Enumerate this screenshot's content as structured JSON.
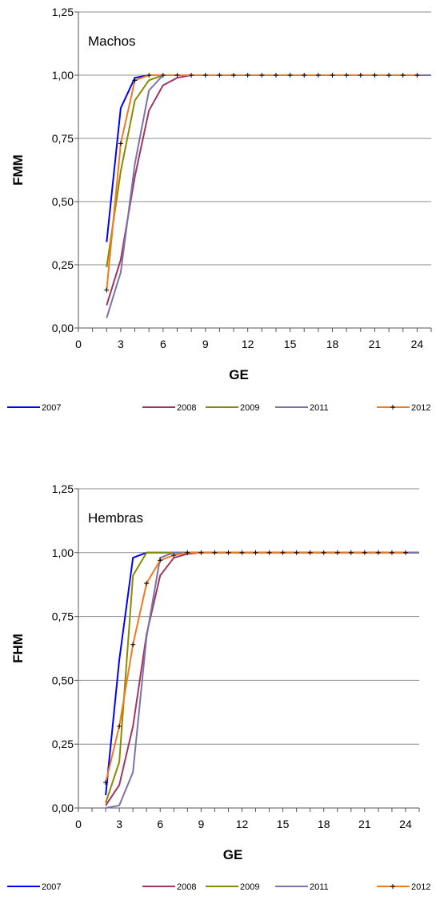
{
  "chart_data": [
    {
      "type": "line",
      "annotation": "Machos",
      "xlabel": "GE",
      "ylabel": "FMM",
      "xlim": [
        0,
        25
      ],
      "ylim": [
        0,
        1.25
      ],
      "xticks": [
        0,
        3,
        6,
        9,
        12,
        15,
        18,
        21,
        24
      ],
      "yticks": [
        0,
        0.25,
        0.5,
        0.75,
        1.0,
        1.25
      ],
      "ytick_labels": [
        "0,00",
        "0,25",
        "0,50",
        "0,75",
        "1,00",
        "1,25"
      ],
      "grid": "horizontal",
      "legend_position": "bottom",
      "series": [
        {
          "name": "2007",
          "color": "#0000ff",
          "marker": "none",
          "x": [
            2,
            3,
            4,
            5,
            6,
            7,
            8,
            9,
            10,
            11,
            12,
            13,
            14,
            15,
            16,
            17,
            18,
            19,
            20,
            21,
            22,
            23,
            24,
            25
          ],
          "y": [
            0.34,
            0.87,
            0.99,
            1.0,
            1.0,
            1.0,
            1.0,
            1.0,
            1.0,
            1.0,
            1.0,
            1.0,
            1.0,
            1.0,
            1.0,
            1.0,
            1.0,
            1.0,
            1.0,
            1.0,
            1.0,
            1.0,
            1.0,
            1.0
          ]
        },
        {
          "name": "2008",
          "color": "#a0355f",
          "marker": "none",
          "x": [
            2,
            3,
            4,
            5,
            6,
            7,
            8,
            9,
            10,
            11,
            12,
            13,
            14,
            15,
            16,
            17,
            18,
            19,
            20,
            21,
            22,
            23,
            24,
            25
          ],
          "y": [
            0.09,
            0.27,
            0.6,
            0.86,
            0.96,
            0.99,
            1.0,
            1.0,
            1.0,
            1.0,
            1.0,
            1.0,
            1.0,
            1.0,
            1.0,
            1.0,
            1.0,
            1.0,
            1.0,
            1.0,
            1.0,
            1.0,
            1.0,
            1.0
          ]
        },
        {
          "name": "2009",
          "color": "#8a8a00",
          "marker": "none",
          "x": [
            2,
            3,
            4,
            5,
            6,
            7,
            8,
            9,
            10,
            11,
            12,
            13,
            14,
            15,
            16,
            17,
            18,
            19,
            20,
            21,
            22,
            23,
            24,
            25
          ],
          "y": [
            0.24,
            0.62,
            0.9,
            0.98,
            1.0,
            1.0,
            1.0,
            1.0,
            1.0,
            1.0,
            1.0,
            1.0,
            1.0,
            1.0,
            1.0,
            1.0,
            1.0,
            1.0,
            1.0,
            1.0,
            1.0,
            1.0,
            1.0,
            1.0
          ]
        },
        {
          "name": "2011",
          "color": "#7b72a8",
          "marker": "none",
          "x": [
            2,
            3,
            4,
            5,
            6,
            7,
            8,
            9,
            10,
            11,
            12,
            13,
            14,
            15,
            16,
            17,
            18,
            19,
            20,
            21,
            22,
            23,
            24,
            25
          ],
          "y": [
            0.04,
            0.22,
            0.65,
            0.94,
            1.0,
            1.0,
            1.0,
            1.0,
            1.0,
            1.0,
            1.0,
            1.0,
            1.0,
            1.0,
            1.0,
            1.0,
            1.0,
            1.0,
            1.0,
            1.0,
            1.0,
            1.0,
            1.0,
            1.0
          ]
        },
        {
          "name": "2012",
          "color": "#f07a1e",
          "marker": "plus",
          "x": [
            2,
            3,
            4,
            5,
            6,
            7,
            8,
            9,
            10,
            11,
            12,
            13,
            14,
            15,
            16,
            17,
            18,
            19,
            20,
            21,
            22,
            23,
            24
          ],
          "y": [
            0.15,
            0.73,
            0.98,
            1.0,
            1.0,
            1.0,
            1.0,
            1.0,
            1.0,
            1.0,
            1.0,
            1.0,
            1.0,
            1.0,
            1.0,
            1.0,
            1.0,
            1.0,
            1.0,
            1.0,
            1.0,
            1.0,
            1.0
          ]
        }
      ]
    },
    {
      "type": "line",
      "annotation": "Hembras",
      "xlabel": "GE",
      "ylabel": "FHM",
      "xlim": [
        0,
        25
      ],
      "ylim": [
        0,
        1.25
      ],
      "xticks": [
        0,
        3,
        6,
        9,
        12,
        15,
        18,
        21,
        24
      ],
      "yticks": [
        0,
        0.25,
        0.5,
        0.75,
        1.0,
        1.25
      ],
      "ytick_labels": [
        "0,00",
        "0,25",
        "0,50",
        "0,75",
        "1,00",
        "1,25"
      ],
      "grid": "horizontal",
      "legend_position": "bottom",
      "series": [
        {
          "name": "2007",
          "color": "#0000ff",
          "marker": "none",
          "x": [
            2,
            3,
            4,
            5,
            6,
            7,
            8,
            9,
            10,
            11,
            12,
            13,
            14,
            15,
            16,
            17,
            18,
            19,
            20,
            21,
            22,
            23,
            24,
            25
          ],
          "y": [
            0.05,
            0.58,
            0.98,
            1.0,
            1.0,
            1.0,
            1.0,
            1.0,
            1.0,
            1.0,
            1.0,
            1.0,
            1.0,
            1.0,
            1.0,
            1.0,
            1.0,
            1.0,
            1.0,
            1.0,
            1.0,
            1.0,
            1.0,
            1.0
          ]
        },
        {
          "name": "2008",
          "color": "#a0355f",
          "marker": "none",
          "x": [
            2,
            3,
            4,
            5,
            6,
            7,
            8,
            9,
            10,
            11,
            12,
            13,
            14,
            15,
            16,
            17,
            18,
            19,
            20,
            21,
            22,
            23,
            24,
            25
          ],
          "y": [
            0.01,
            0.09,
            0.32,
            0.68,
            0.91,
            0.98,
            0.995,
            1.0,
            1.0,
            1.0,
            1.0,
            1.0,
            1.0,
            1.0,
            1.0,
            1.0,
            1.0,
            1.0,
            1.0,
            1.0,
            1.0,
            1.0,
            1.0,
            1.0
          ]
        },
        {
          "name": "2009",
          "color": "#8a8a00",
          "marker": "none",
          "x": [
            2,
            3,
            4,
            5,
            6,
            7,
            8,
            9,
            10,
            11,
            12,
            13,
            14,
            15,
            16,
            17,
            18,
            19,
            20,
            21,
            22,
            23,
            24,
            25
          ],
          "y": [
            0.02,
            0.18,
            0.91,
            1.0,
            1.0,
            1.0,
            1.0,
            1.0,
            1.0,
            1.0,
            1.0,
            1.0,
            1.0,
            1.0,
            1.0,
            1.0,
            1.0,
            1.0,
            1.0,
            1.0,
            1.0,
            1.0,
            1.0,
            1.0
          ]
        },
        {
          "name": "2011",
          "color": "#7b72a8",
          "marker": "none",
          "x": [
            2,
            3,
            4,
            5,
            6,
            7,
            8,
            9,
            10,
            11,
            12,
            13,
            14,
            15,
            16,
            17,
            18,
            19,
            20,
            21,
            22,
            23,
            24,
            25
          ],
          "y": [
            0.0,
            0.01,
            0.14,
            0.67,
            0.98,
            1.0,
            1.0,
            1.0,
            1.0,
            1.0,
            1.0,
            1.0,
            1.0,
            1.0,
            1.0,
            1.0,
            1.0,
            1.0,
            1.0,
            1.0,
            1.0,
            1.0,
            1.0,
            1.0
          ]
        },
        {
          "name": "2012",
          "color": "#f07a1e",
          "marker": "plus",
          "x": [
            2,
            3,
            4,
            5,
            6,
            7,
            8,
            9,
            10,
            11,
            12,
            13,
            14,
            15,
            16,
            17,
            18,
            19,
            20,
            21,
            22,
            23,
            24
          ],
          "y": [
            0.1,
            0.32,
            0.64,
            0.88,
            0.97,
            0.99,
            1.0,
            1.0,
            1.0,
            1.0,
            1.0,
            1.0,
            1.0,
            1.0,
            1.0,
            1.0,
            1.0,
            1.0,
            1.0,
            1.0,
            1.0,
            1.0,
            1.0
          ]
        }
      ]
    }
  ]
}
